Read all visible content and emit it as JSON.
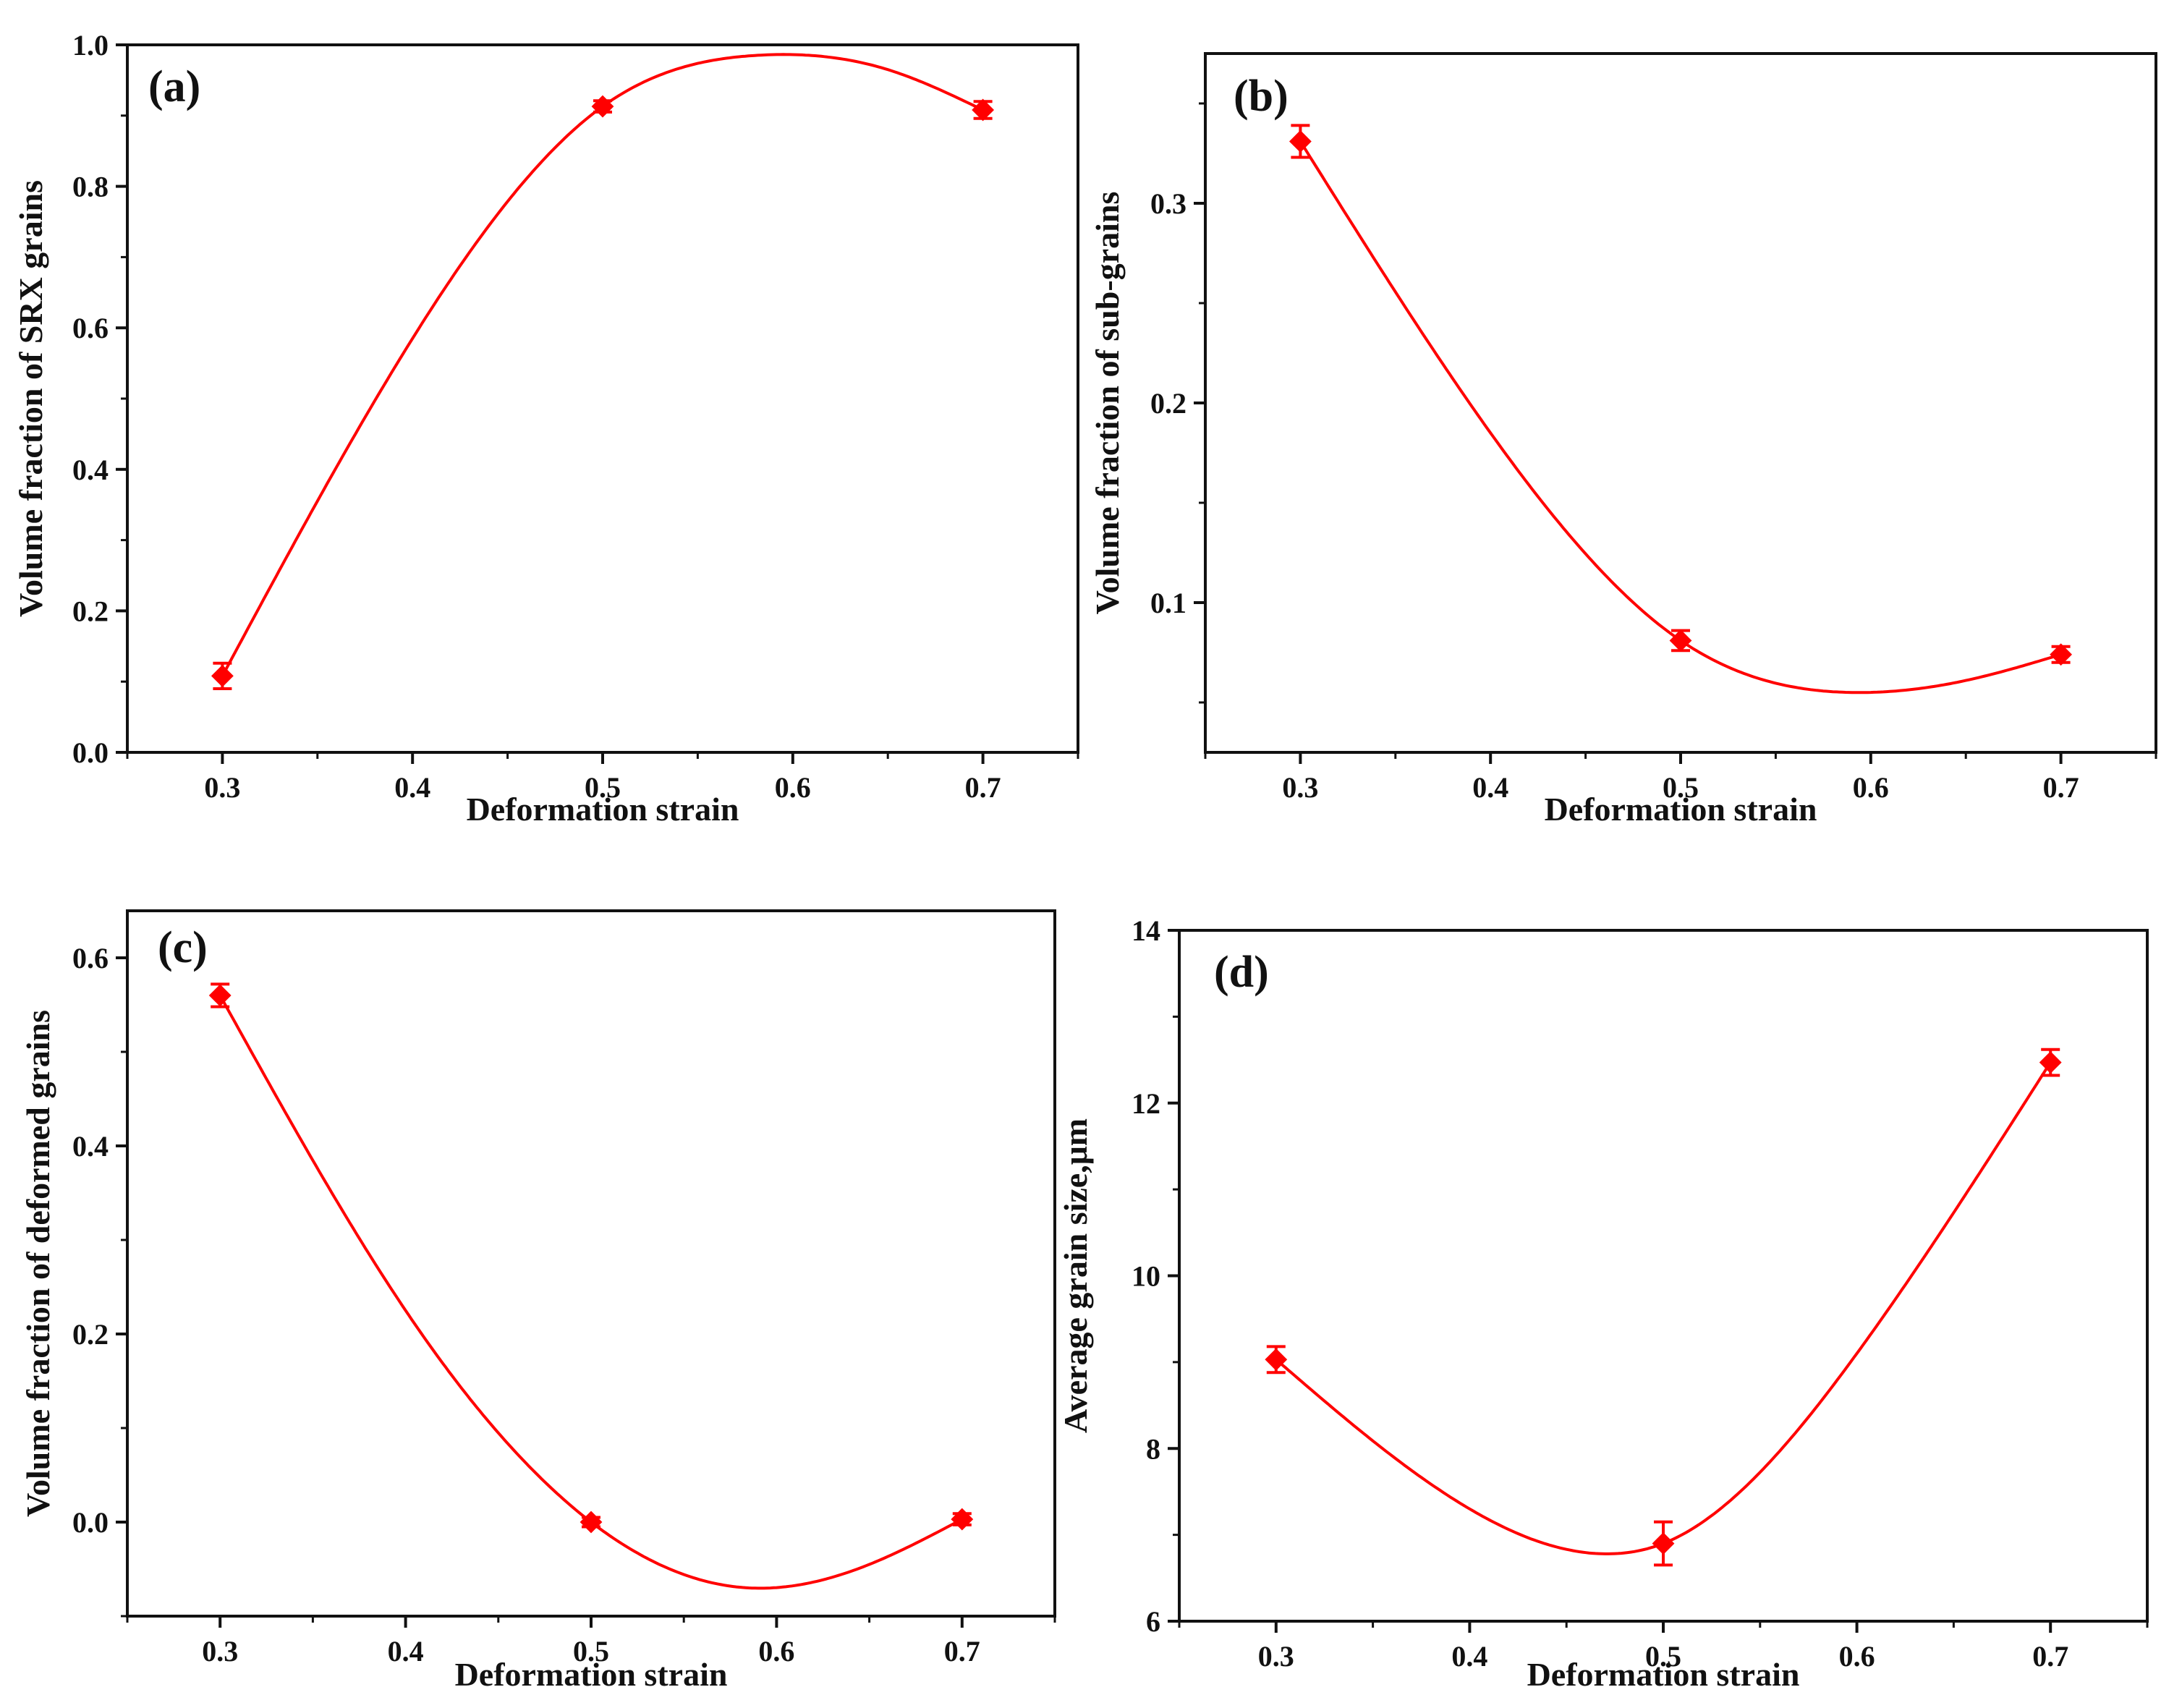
{
  "figure": {
    "colors": {
      "series": "#ff0000",
      "axis": "#111111",
      "background": "#ffffff"
    }
  },
  "chart_data": [
    {
      "panel_label": "(a)",
      "type": "line",
      "xlabel": "Deformation strain",
      "ylabel": "Volume fraction of SRX grains",
      "xlim": [
        0.25,
        0.75
      ],
      "ylim": [
        0.0,
        1.0
      ],
      "xticks": [
        0.3,
        0.4,
        0.5,
        0.6,
        0.7
      ],
      "xticklabels": [
        "0.3",
        "0.4",
        "0.5",
        "0.6",
        "0.7"
      ],
      "yticks": [
        0.0,
        0.2,
        0.4,
        0.6,
        0.8,
        1.0
      ],
      "yticklabels": [
        "0.0",
        "0.2",
        "0.4",
        "0.6",
        "0.8",
        "1.0"
      ],
      "series": [
        {
          "name": "SRX grains",
          "x": [
            0.3,
            0.5,
            0.7
          ],
          "values": [
            0.108,
            0.913,
            0.908
          ],
          "errors": [
            0.018,
            0.008,
            0.012
          ]
        }
      ],
      "fit": {
        "x": [
          0.3,
          0.4,
          0.5,
          0.58,
          0.65,
          0.7
        ],
        "values": [
          0.108,
          0.585,
          0.913,
          0.985,
          0.965,
          0.908
        ]
      }
    },
    {
      "panel_label": "(b)",
      "type": "line",
      "xlabel": "Deformation strain",
      "ylabel": "Volume fraction of sub-grains",
      "xlim": [
        0.25,
        0.75
      ],
      "ylim": [
        0.025,
        0.375
      ],
      "xticks": [
        0.3,
        0.4,
        0.5,
        0.6,
        0.7
      ],
      "xticklabels": [
        "0.3",
        "0.4",
        "0.5",
        "0.6",
        "0.7"
      ],
      "yticks": [
        0.1,
        0.2,
        0.3
      ],
      "yticklabels": [
        "0.1",
        "0.2",
        "0.3"
      ],
      "series": [
        {
          "name": "Sub-grains",
          "x": [
            0.3,
            0.5,
            0.7
          ],
          "values": [
            0.331,
            0.081,
            0.074
          ],
          "errors": [
            0.008,
            0.005,
            0.004
          ]
        }
      ],
      "fit": {
        "x": [
          0.3,
          0.4,
          0.5,
          0.59,
          0.65,
          0.7
        ],
        "values": [
          0.331,
          0.185,
          0.081,
          0.055,
          0.061,
          0.074
        ]
      }
    },
    {
      "panel_label": "(c)",
      "type": "line",
      "xlabel": "Deformation strain",
      "ylabel": "Volume fraction of deformed grains",
      "xlim": [
        0.25,
        0.75
      ],
      "ylim": [
        -0.1,
        0.65
      ],
      "xticks": [
        0.3,
        0.4,
        0.5,
        0.6,
        0.7
      ],
      "xticklabels": [
        "0.3",
        "0.4",
        "0.5",
        "0.6",
        "0.7"
      ],
      "yticks": [
        0.0,
        0.2,
        0.4,
        0.6
      ],
      "yticklabels": [
        "0.0",
        "0.2",
        "0.4",
        "0.6"
      ],
      "series": [
        {
          "name": "Deformed grains",
          "x": [
            0.3,
            0.5,
            0.7
          ],
          "values": [
            0.56,
            0.0,
            0.003
          ],
          "errors": [
            0.012,
            0.005,
            0.006
          ]
        }
      ],
      "fit": {
        "x": [
          0.3,
          0.4,
          0.5,
          0.585,
          0.65,
          0.7
        ],
        "values": [
          0.56,
          0.225,
          0.0,
          -0.07,
          -0.045,
          0.003
        ]
      }
    },
    {
      "panel_label": "(d)",
      "type": "line",
      "xlabel": "Deformation strain",
      "ylabel": "Average grain size,μm",
      "xlim": [
        0.25,
        0.75
      ],
      "ylim": [
        6,
        14
      ],
      "xticks": [
        0.3,
        0.4,
        0.5,
        0.6,
        0.7
      ],
      "xticklabels": [
        "0.3",
        "0.4",
        "0.5",
        "0.6",
        "0.7"
      ],
      "yticks": [
        6,
        8,
        10,
        12,
        14
      ],
      "yticklabels": [
        "6",
        "8",
        "10",
        "12",
        "14"
      ],
      "series": [
        {
          "name": "Average grain size",
          "x": [
            0.3,
            0.5,
            0.7
          ],
          "values": [
            9.03,
            6.9,
            12.47
          ],
          "errors": [
            0.15,
            0.25,
            0.15
          ]
        }
      ],
      "fit": {
        "x": [
          0.3,
          0.4,
          0.47,
          0.5,
          0.6,
          0.7
        ],
        "values": [
          9.03,
          7.3,
          6.78,
          6.9,
          9.1,
          12.47
        ]
      }
    }
  ]
}
